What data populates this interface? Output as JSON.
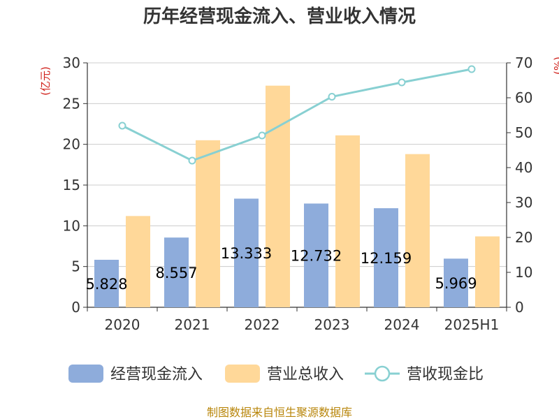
{
  "chart_data": {
    "type": "bar",
    "title": "历年经营现金流入、营业收入情况",
    "categories": [
      "2020",
      "2021",
      "2022",
      "2023",
      "2024",
      "2025H1"
    ],
    "series": [
      {
        "name": "经营现金流入",
        "type": "bar",
        "axis": "left",
        "color": "#8eacdb",
        "values": [
          5.828,
          8.557,
          13.333,
          12.732,
          12.159,
          5.969
        ],
        "labels": [
          "5.828",
          "8.557",
          "13.333",
          "12.732",
          "12.159",
          "5.969"
        ]
      },
      {
        "name": "营业总收入",
        "type": "bar",
        "axis": "left",
        "color": "#ffd899",
        "values": [
          11.2,
          20.5,
          27.2,
          21.1,
          18.8,
          8.7
        ]
      },
      {
        "name": "营收现金比",
        "type": "line",
        "axis": "right",
        "color": "#88d0d2",
        "values": [
          52.0,
          42.0,
          49.2,
          60.3,
          64.4,
          68.2
        ]
      }
    ],
    "y_left": {
      "unit": "(亿元)",
      "ylim": [
        0,
        30
      ],
      "ticks": [
        "0",
        "5",
        "10",
        "15",
        "20",
        "25",
        "30"
      ]
    },
    "y_right": {
      "unit": "(%)",
      "ylim": [
        0,
        70
      ],
      "ticks": [
        "0",
        "10",
        "20",
        "30",
        "40",
        "50",
        "60",
        "70"
      ]
    },
    "grid": true,
    "legend_position": "bottom",
    "source": "制图数据来自恒生聚源数据库"
  }
}
